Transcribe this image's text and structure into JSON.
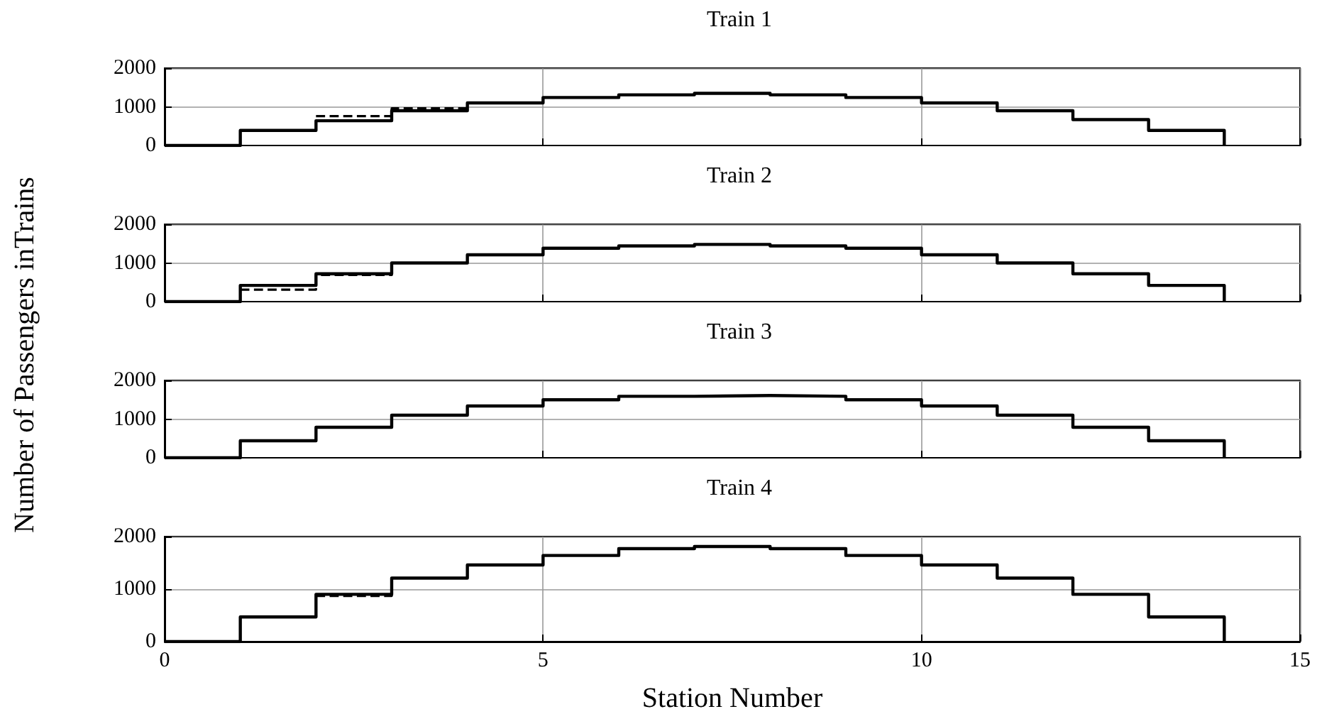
{
  "chart_data": [
    {
      "type": "step",
      "title": "Train 1",
      "ylabel": "Number of Passengers inTrains",
      "x": [
        0,
        1,
        2,
        3,
        4,
        5,
        6,
        7,
        8,
        9,
        10,
        11,
        12,
        13,
        14
      ],
      "xlim": [
        0,
        15
      ],
      "xticks": [
        0,
        5,
        10,
        15
      ],
      "ylim": [
        0,
        2000
      ],
      "yticks": [
        0,
        1000,
        2000
      ],
      "grid": true,
      "tick_labels": "y",
      "series": [
        {
          "color": "#000000",
          "line_style": "solid",
          "values": [
            0,
            390,
            640,
            900,
            1100,
            1240,
            1310,
            1350,
            1310,
            1240,
            1100,
            900,
            670,
            390,
            0
          ]
        },
        {
          "color": "#000000",
          "line_style": "dashed",
          "values": [
            null,
            null,
            760,
            960,
            1100,
            null,
            null,
            null,
            null,
            null,
            null,
            null,
            null,
            null,
            null
          ]
        }
      ]
    },
    {
      "type": "step",
      "title": "Train 2",
      "x": [
        0,
        1,
        2,
        3,
        4,
        5,
        6,
        7,
        8,
        9,
        10,
        11,
        12,
        13,
        14
      ],
      "xlim": [
        0,
        15
      ],
      "xticks": [
        0,
        5,
        10,
        15
      ],
      "ylim": [
        0,
        2000
      ],
      "yticks": [
        0,
        1000,
        2000
      ],
      "grid": true,
      "tick_labels": "y",
      "series": [
        {
          "color": "#000000",
          "line_style": "solid",
          "values": [
            0,
            420,
            720,
            1000,
            1210,
            1380,
            1440,
            1480,
            1440,
            1380,
            1210,
            1000,
            720,
            420,
            0
          ]
        },
        {
          "color": "#000000",
          "line_style": "dashed",
          "values": [
            null,
            310,
            690,
            1000,
            null,
            null,
            null,
            null,
            null,
            null,
            null,
            null,
            null,
            null,
            null
          ]
        }
      ]
    },
    {
      "type": "step",
      "title": "Train 3",
      "x": [
        0,
        1,
        2,
        3,
        4,
        5,
        6,
        7,
        8,
        9,
        10,
        11,
        12,
        13,
        14
      ],
      "xlim": [
        0,
        15
      ],
      "xticks": [
        0,
        5,
        10,
        15
      ],
      "ylim": [
        0,
        2000
      ],
      "yticks": [
        0,
        1000,
        2000
      ],
      "grid": true,
      "tick_labels": "y",
      "series": [
        {
          "color": "#000000",
          "line_style": "solid",
          "values": [
            0,
            440,
            790,
            1100,
            1340,
            1500,
            1590,
            1610,
            1590,
            1500,
            1340,
            1100,
            790,
            440,
            0
          ]
        }
      ]
    },
    {
      "type": "step",
      "title": "Train 4",
      "xlabel": "Station Number",
      "x": [
        0,
        1,
        2,
        3,
        4,
        5,
        6,
        7,
        8,
        9,
        10,
        11,
        12,
        13,
        14
      ],
      "xlim": [
        0,
        15
      ],
      "xticks": [
        0,
        5,
        10,
        15
      ],
      "ylim": [
        0,
        2000
      ],
      "yticks": [
        0,
        1000,
        2000
      ],
      "grid": true,
      "series": [
        {
          "color": "#000000",
          "line_style": "solid",
          "values": [
            0,
            470,
            900,
            1210,
            1460,
            1640,
            1770,
            1810,
            1770,
            1640,
            1460,
            1210,
            900,
            470,
            0
          ]
        },
        {
          "color": "#000000",
          "line_style": "dashed",
          "values": [
            null,
            null,
            870,
            1210,
            null,
            null,
            null,
            null,
            null,
            null,
            null,
            null,
            null,
            null,
            null
          ]
        }
      ]
    }
  ]
}
